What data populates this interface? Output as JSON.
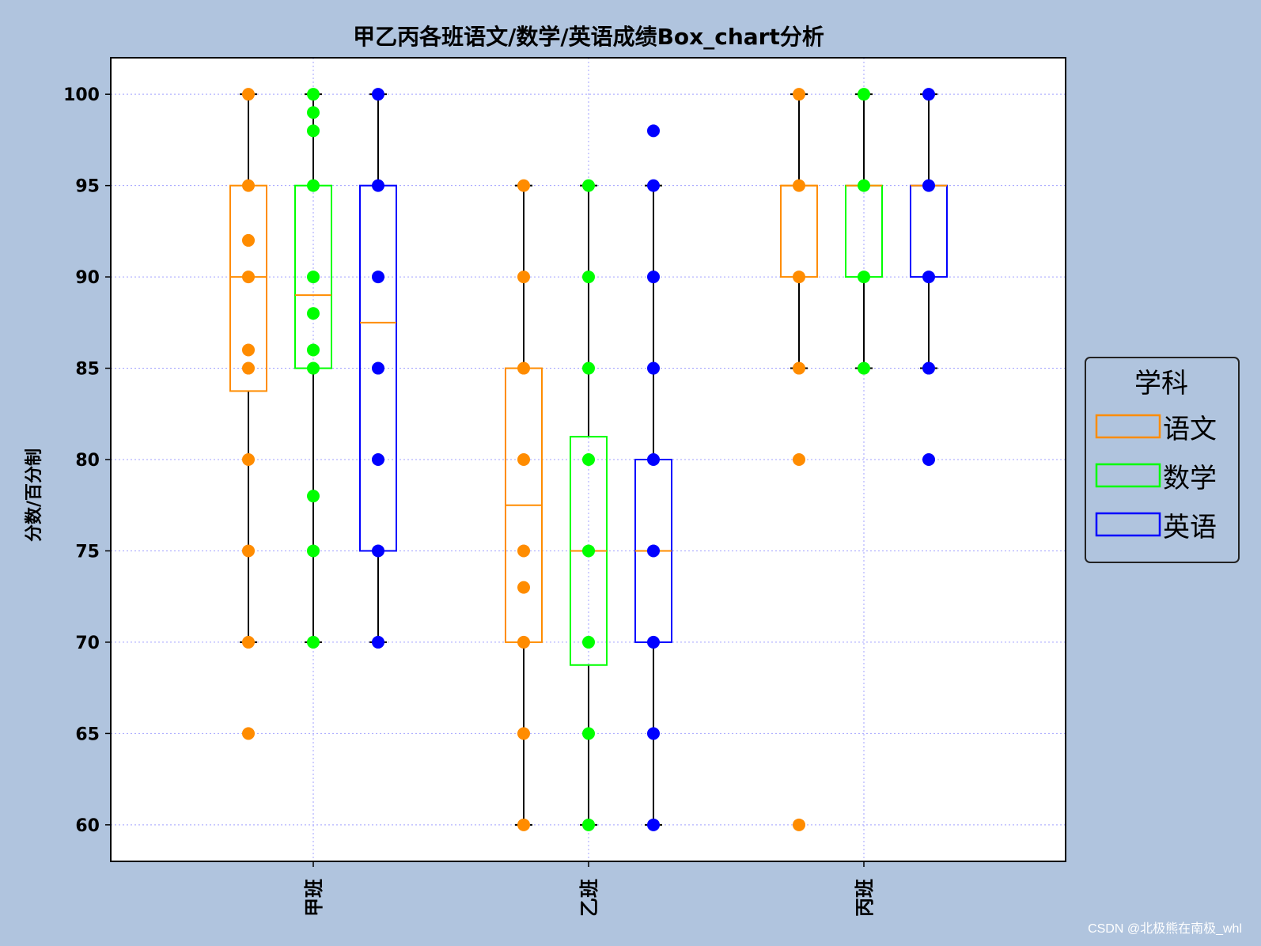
{
  "chart_data": {
    "type": "box",
    "title": "甲乙丙各班语文/数学/英语成绩Box_chart分析",
    "xlabel": "",
    "ylabel": "分数/百分制",
    "ylim": [
      58,
      102
    ],
    "yticks": [
      60,
      65,
      70,
      75,
      80,
      85,
      90,
      95,
      100
    ],
    "grid": true,
    "categories": [
      "甲班",
      "乙班",
      "丙班"
    ],
    "legend": {
      "title": "学科",
      "placement": "center-right"
    },
    "series": [
      {
        "name": "语文",
        "color": "#ff8c00",
        "boxes": [
          {
            "category": "甲班",
            "whisker_low": 70,
            "q1": 83.75,
            "median": 90,
            "q3": 95,
            "whisker_high": 100,
            "points": [
              100,
              95,
              92,
              90,
              86,
              85,
              80,
              75,
              70,
              65
            ]
          },
          {
            "category": "乙班",
            "whisker_low": 60,
            "q1": 70,
            "median": 77.5,
            "q3": 85,
            "whisker_high": 95,
            "points": [
              95,
              90,
              85,
              80,
              75,
              73,
              70,
              65,
              60
            ]
          },
          {
            "category": "丙班",
            "whisker_low": 85,
            "q1": 90,
            "median": 95,
            "q3": 95,
            "whisker_high": 100,
            "points": [
              100,
              95,
              90,
              85,
              80,
              60
            ]
          }
        ]
      },
      {
        "name": "数学",
        "color": "#00ff00",
        "boxes": [
          {
            "category": "甲班",
            "whisker_low": 70,
            "q1": 85,
            "median": 89,
            "q3": 95,
            "whisker_high": 100,
            "points": [
              100,
              99,
              98,
              95,
              90,
              88,
              86,
              85,
              78,
              75,
              70
            ]
          },
          {
            "category": "乙班",
            "whisker_low": 60,
            "q1": 68.75,
            "median": 75,
            "q3": 81.25,
            "whisker_high": 95,
            "points": [
              95,
              90,
              85,
              80,
              75,
              70,
              65,
              60
            ]
          },
          {
            "category": "丙班",
            "whisker_low": 85,
            "q1": 90,
            "median": 95,
            "q3": 95,
            "whisker_high": 100,
            "points": [
              100,
              95,
              90,
              85
            ]
          }
        ]
      },
      {
        "name": "英语",
        "color": "#0000ff",
        "boxes": [
          {
            "category": "甲班",
            "whisker_low": 70,
            "q1": 75,
            "median": 87.5,
            "q3": 95,
            "whisker_high": 100,
            "points": [
              100,
              95,
              90,
              85,
              80,
              75,
              70
            ]
          },
          {
            "category": "乙班",
            "whisker_low": 60,
            "q1": 70,
            "median": 75,
            "q3": 80,
            "whisker_high": 95,
            "points": [
              98,
              95,
              90,
              85,
              80,
              75,
              70,
              65,
              60
            ]
          },
          {
            "category": "丙班",
            "whisker_low": 85,
            "q1": 90,
            "median": 95,
            "q3": 95,
            "whisker_high": 100,
            "points": [
              100,
              95,
              90,
              85,
              80
            ]
          }
        ]
      }
    ]
  },
  "colors": {
    "background": "#b0c4de",
    "plot": "#ffffff",
    "grid": "#a0a0ff",
    "median": "#ff8c00"
  },
  "watermark": "CSDN @北极熊在南极_whl"
}
